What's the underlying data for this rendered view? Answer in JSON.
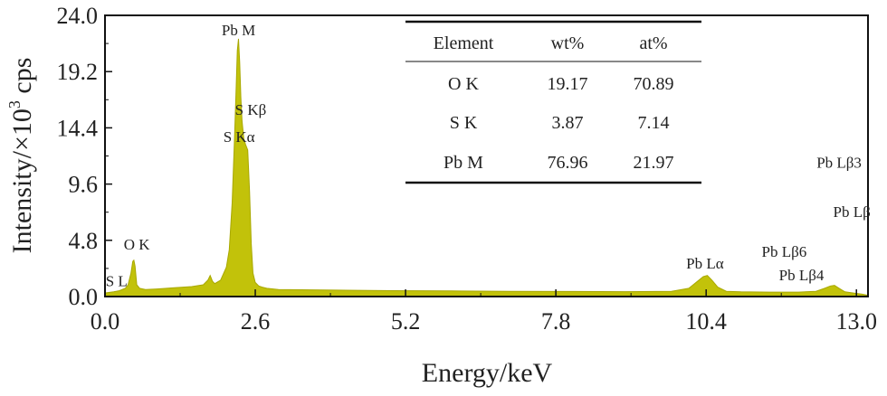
{
  "chart_data": {
    "type": "area",
    "xlabel": "Energy/keV",
    "ylabel_parts": {
      "main": "Intensity/×10",
      "sup": "3",
      "unit": " cps"
    },
    "xlim": [
      0.0,
      13.2
    ],
    "ylim": [
      0.0,
      24.0
    ],
    "x_ticks": [
      "0.0",
      "2.6",
      "5.2",
      "7.8",
      "10.4",
      "13.0"
    ],
    "x_tick_values": [
      0.0,
      2.6,
      5.2,
      7.8,
      10.4,
      13.0
    ],
    "y_ticks": [
      "0.0",
      "4.8",
      "9.6",
      "14.4",
      "19.2",
      "24.0"
    ],
    "y_tick_values": [
      0.0,
      4.8,
      9.6,
      14.4,
      19.2,
      24.0
    ],
    "grid": false,
    "series_color": "#c2c20a",
    "series": [
      {
        "x": [
          0.0,
          0.15,
          0.25,
          0.35,
          0.4,
          0.45,
          0.48,
          0.5,
          0.52,
          0.55,
          0.6,
          0.7,
          0.9,
          1.2,
          1.5,
          1.7,
          1.78,
          1.82,
          1.86,
          1.9,
          2.0,
          2.1,
          2.15,
          2.2,
          2.24,
          2.27,
          2.29,
          2.31,
          2.33,
          2.35,
          2.37,
          2.4,
          2.43,
          2.47,
          2.5,
          2.53,
          2.56,
          2.6,
          2.66,
          2.72,
          2.8,
          3.0,
          4.0,
          5.0,
          6.0,
          7.0,
          8.0,
          9.0,
          9.8,
          10.1,
          10.25,
          10.35,
          10.42,
          10.5,
          10.6,
          10.75,
          11.0,
          11.5,
          12.0,
          12.3,
          12.45,
          12.55,
          12.62,
          12.7,
          12.8,
          12.95,
          13.1,
          13.2
        ],
        "y": [
          0.3,
          0.4,
          0.5,
          0.7,
          1.0,
          2.0,
          3.0,
          3.1,
          2.6,
          1.0,
          0.7,
          0.6,
          0.65,
          0.75,
          0.85,
          1.0,
          1.4,
          1.8,
          1.3,
          1.1,
          1.4,
          2.5,
          4.0,
          8.0,
          13.5,
          18.0,
          21.0,
          22.0,
          20.0,
          17.0,
          15.0,
          13.5,
          13.0,
          12.5,
          9.0,
          4.5,
          2.0,
          1.2,
          0.9,
          0.8,
          0.7,
          0.6,
          0.55,
          0.5,
          0.48,
          0.45,
          0.43,
          0.42,
          0.45,
          0.7,
          1.3,
          1.7,
          1.8,
          1.4,
          0.8,
          0.45,
          0.4,
          0.38,
          0.38,
          0.45,
          0.7,
          0.9,
          0.95,
          0.7,
          0.4,
          0.3,
          0.2,
          0.1
        ]
      }
    ],
    "annotations": [
      {
        "text": "Pb M",
        "x": 2.31,
        "y": 22.3
      },
      {
        "text": "S Kβ",
        "x": 2.52,
        "y": 15.5
      },
      {
        "text": "S Kα",
        "x": 2.32,
        "y": 13.2
      },
      {
        "text": "O K",
        "x": 0.55,
        "y": 4.0
      },
      {
        "text": "S L",
        "x": 0.2,
        "y": 0.9
      },
      {
        "text": "Pb Lα",
        "x": 10.38,
        "y": 2.4
      },
      {
        "text": "Pb Lβ3",
        "x": 12.7,
        "y": 11.0
      },
      {
        "text": "Pb Lβ",
        "x": 12.92,
        "y": 6.8
      },
      {
        "text": "Pb Lβ6",
        "x": 11.75,
        "y": 3.4
      },
      {
        "text": "Pb Lβ4",
        "x": 12.05,
        "y": 1.4
      }
    ],
    "table": {
      "headers": [
        "Element",
        "wt%",
        "at%"
      ],
      "rows": [
        [
          "O K",
          "19.17",
          "70.89"
        ],
        [
          "S K",
          "3.87",
          "7.14"
        ],
        [
          "Pb M",
          "76.96",
          "21.97"
        ]
      ]
    }
  }
}
